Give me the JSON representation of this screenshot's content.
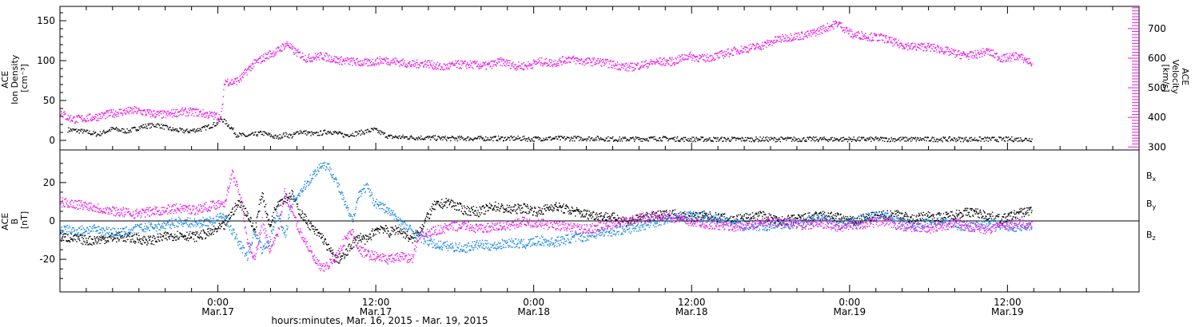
{
  "chart_data": [
    {
      "type": "scatter",
      "panel": "top",
      "ylabel": [
        "ACE",
        "Ion Density",
        "[cm⁻³]"
      ],
      "ylim": [
        -12,
        168
      ],
      "yticks": [
        0,
        50,
        100,
        150
      ],
      "right_axis": {
        "label": [
          "ACE",
          "Velocity",
          "[km/s]"
        ],
        "ylim": [
          290,
          775
        ],
        "yticks": [
          300,
          400,
          500,
          600,
          700
        ],
        "color": "#e81ae8"
      },
      "series": [
        {
          "key": "density",
          "color": "#000000",
          "axis": "left",
          "x": [
            2,
            6,
            10,
            14,
            18,
            22,
            26,
            30,
            34,
            38,
            42,
            43,
            44,
            46,
            47,
            50,
            54,
            58,
            60,
            62,
            64,
            68,
            72,
            76,
            80,
            84,
            88,
            96,
            104,
            112,
            120,
            124,
            126,
            128,
            132,
            136,
            140,
            144,
            150,
            160,
            168,
            180,
            190,
            200,
            210,
            220,
            230,
            240,
            250,
            260
          ],
          "y": [
            14,
            12,
            8,
            15,
            12,
            18,
            20,
            14,
            12,
            15,
            22,
            28,
            24,
            15,
            8,
            6,
            10,
            4,
            8,
            6,
            12,
            8,
            12,
            7,
            10,
            14,
            5,
            4,
            3,
            3,
            3,
            3,
            2,
            3,
            3,
            3,
            3,
            3,
            2,
            3,
            2,
            2,
            2,
            2,
            2,
            2,
            2,
            2,
            2,
            2
          ]
        },
        {
          "key": "velocity",
          "color": "#e81ae8",
          "axis": "right",
          "x": [
            0,
            2,
            4,
            8,
            12,
            16,
            20,
            24,
            28,
            32,
            36,
            40,
            42,
            43,
            44,
            46,
            48,
            50,
            52,
            54,
            56,
            58,
            60,
            61,
            62,
            64,
            66,
            68,
            70,
            74,
            78,
            82,
            86,
            90,
            94,
            98,
            102,
            106,
            110,
            114,
            118,
            122,
            124,
            126,
            128,
            132,
            136,
            140,
            144,
            148,
            152,
            156,
            160,
            164,
            168,
            172,
            176,
            180,
            184,
            188,
            192,
            196,
            200,
            204,
            208,
            210,
            212,
            214,
            216,
            220,
            224,
            228,
            232,
            236,
            240,
            244,
            248,
            252,
            256,
            260
          ],
          "y": [
            420,
            400,
            395,
            400,
            410,
            420,
            425,
            415,
            410,
            420,
            420,
            410,
            405,
            400,
            525,
            520,
            530,
            560,
            585,
            600,
            615,
            625,
            645,
            650,
            630,
            615,
            600,
            605,
            610,
            595,
            590,
            585,
            595,
            590,
            580,
            585,
            570,
            580,
            580,
            575,
            590,
            575,
            575,
            580,
            590,
            585,
            600,
            590,
            590,
            580,
            570,
            580,
            590,
            590,
            610,
            600,
            610,
            625,
            635,
            645,
            665,
            675,
            680,
            700,
            720,
            700,
            680,
            680,
            675,
            670,
            650,
            640,
            640,
            630,
            615,
            610,
            625,
            600,
            610,
            585
          ]
        }
      ]
    },
    {
      "type": "scatter",
      "panel": "bottom",
      "ylabel": [
        "ACE",
        "B",
        "[nT]"
      ],
      "ylim": [
        -37,
        37
      ],
      "yticks": [
        -20,
        0,
        20
      ],
      "legend_position": "right",
      "legend": [
        {
          "base": "B",
          "sub": "x",
          "color": "#000000"
        },
        {
          "base": "B",
          "sub": "y",
          "color": "#1a87e0"
        },
        {
          "base": "B",
          "sub": "z",
          "color": "#e81ae8"
        }
      ],
      "series": [
        {
          "key": "bx",
          "color": "#000000",
          "x": [
            0,
            4,
            8,
            12,
            16,
            20,
            24,
            28,
            32,
            36,
            40,
            44,
            46,
            48,
            50,
            52,
            54,
            56,
            58,
            60,
            62,
            64,
            66,
            68,
            70,
            72,
            74,
            76,
            78,
            80,
            82,
            84,
            86,
            88,
            90,
            92,
            94,
            96,
            100,
            104,
            108,
            112,
            116,
            120,
            124,
            128,
            132,
            136,
            140,
            144,
            148,
            152,
            156,
            160,
            164,
            168,
            172,
            176,
            180,
            184,
            188,
            192,
            196,
            200,
            204,
            208,
            212,
            216,
            220,
            224,
            228,
            232,
            236,
            240,
            244,
            248,
            252,
            256,
            260
          ],
          "y": [
            -8,
            -9,
            -10,
            -9,
            -8,
            -9,
            -10,
            -8,
            -7,
            -8,
            -6,
            -2,
            5,
            10,
            4,
            -5,
            15,
            -3,
            10,
            12,
            14,
            5,
            0,
            -5,
            -8,
            -15,
            -20,
            -18,
            -12,
            -8,
            -10,
            -5,
            -3,
            -6,
            -4,
            -6,
            -10,
            -5,
            8,
            10,
            6,
            5,
            8,
            6,
            7,
            5,
            8,
            6,
            4,
            3,
            2,
            0,
            2,
            3,
            4,
            2,
            3,
            2,
            1,
            2,
            3,
            0,
            1,
            2,
            3,
            2,
            0,
            2,
            3,
            4,
            1,
            3,
            2,
            4,
            5,
            3,
            1,
            4,
            6
          ]
        },
        {
          "key": "by",
          "color": "#1a87e0",
          "x": [
            0,
            4,
            8,
            12,
            16,
            20,
            24,
            28,
            32,
            36,
            40,
            44,
            46,
            48,
            50,
            52,
            54,
            56,
            58,
            60,
            62,
            64,
            66,
            68,
            70,
            72,
            74,
            76,
            78,
            80,
            82,
            84,
            86,
            88,
            90,
            92,
            94,
            96,
            100,
            104,
            108,
            112,
            116,
            120,
            124,
            128,
            132,
            136,
            140,
            144,
            148,
            152,
            156,
            160,
            164,
            168,
            172,
            176,
            180,
            184,
            188,
            192,
            196,
            200,
            204,
            208,
            212,
            216,
            220,
            224,
            228,
            232,
            236,
            240,
            244,
            248,
            252,
            256,
            260
          ],
          "y": [
            -4,
            -5,
            -4,
            -5,
            -6,
            -4,
            -3,
            -2,
            0,
            -1,
            0,
            3,
            -5,
            -12,
            -18,
            -5,
            -15,
            -10,
            5,
            -8,
            10,
            15,
            20,
            25,
            30,
            28,
            20,
            10,
            0,
            15,
            18,
            10,
            8,
            5,
            2,
            -2,
            -5,
            -8,
            -12,
            -13,
            -14,
            -12,
            -13,
            -11,
            -12,
            -10,
            -11,
            -9,
            -8,
            -6,
            -5,
            -4,
            -2,
            0,
            2,
            3,
            2,
            1,
            -1,
            -2,
            -3,
            -1,
            -2,
            0,
            1,
            -2,
            -1,
            2,
            3,
            0,
            -2,
            -1,
            0,
            -2,
            -3,
            -1,
            -2,
            -3,
            -3
          ]
        },
        {
          "key": "bz",
          "color": "#e81ae8",
          "x": [
            0,
            4,
            8,
            12,
            16,
            20,
            24,
            28,
            32,
            36,
            40,
            44,
            46,
            48,
            50,
            52,
            54,
            56,
            58,
            60,
            62,
            64,
            66,
            68,
            70,
            72,
            74,
            76,
            78,
            80,
            82,
            84,
            86,
            88,
            90,
            92,
            94,
            96,
            100,
            104,
            108,
            112,
            116,
            120,
            124,
            128,
            132,
            136,
            140,
            144,
            148,
            152,
            156,
            160,
            164,
            168,
            172,
            176,
            180,
            184,
            188,
            192,
            196,
            200,
            204,
            208,
            212,
            216,
            220,
            224,
            228,
            232,
            236,
            240,
            244,
            248,
            252,
            256,
            260
          ],
          "y": [
            10,
            9,
            8,
            6,
            5,
            4,
            5,
            6,
            7,
            6,
            8,
            10,
            25,
            15,
            -10,
            -20,
            0,
            -15,
            -8,
            15,
            5,
            -5,
            -12,
            -20,
            -25,
            -22,
            -18,
            -10,
            -5,
            -15,
            -17,
            -18,
            -19,
            -20,
            -19,
            -18,
            -20,
            -8,
            -5,
            -3,
            -2,
            -4,
            -3,
            -2,
            0,
            -1,
            -2,
            -3,
            -4,
            -3,
            -1,
            0,
            2,
            3,
            2,
            0,
            -1,
            -2,
            -3,
            -2,
            -1,
            0,
            -1,
            -2,
            -1,
            -3,
            -2,
            -1,
            0,
            -2,
            -3,
            -4,
            -2,
            -1,
            -3,
            -4,
            -2,
            -1,
            -2
          ]
        }
      ]
    }
  ],
  "x_axis": {
    "range_hours": [
      0,
      82
    ],
    "ticks": [
      {
        "h": 12,
        "top": "0:00",
        "bottom": "Mar.17"
      },
      {
        "h": 24,
        "top": "12:00",
        "bottom": "Mar.17"
      },
      {
        "h": 36,
        "top": "0:00",
        "bottom": "Mar.18"
      },
      {
        "h": 48,
        "top": "12:00",
        "bottom": "Mar.18"
      },
      {
        "h": 60,
        "top": "0:00",
        "bottom": "Mar.19"
      },
      {
        "h": 72,
        "top": "12:00",
        "bottom": "Mar.19"
      }
    ],
    "title": "hours:minutes, Mar. 16, 2015 - Mar. 19, 2015"
  },
  "data_time_scale": 0.284
}
